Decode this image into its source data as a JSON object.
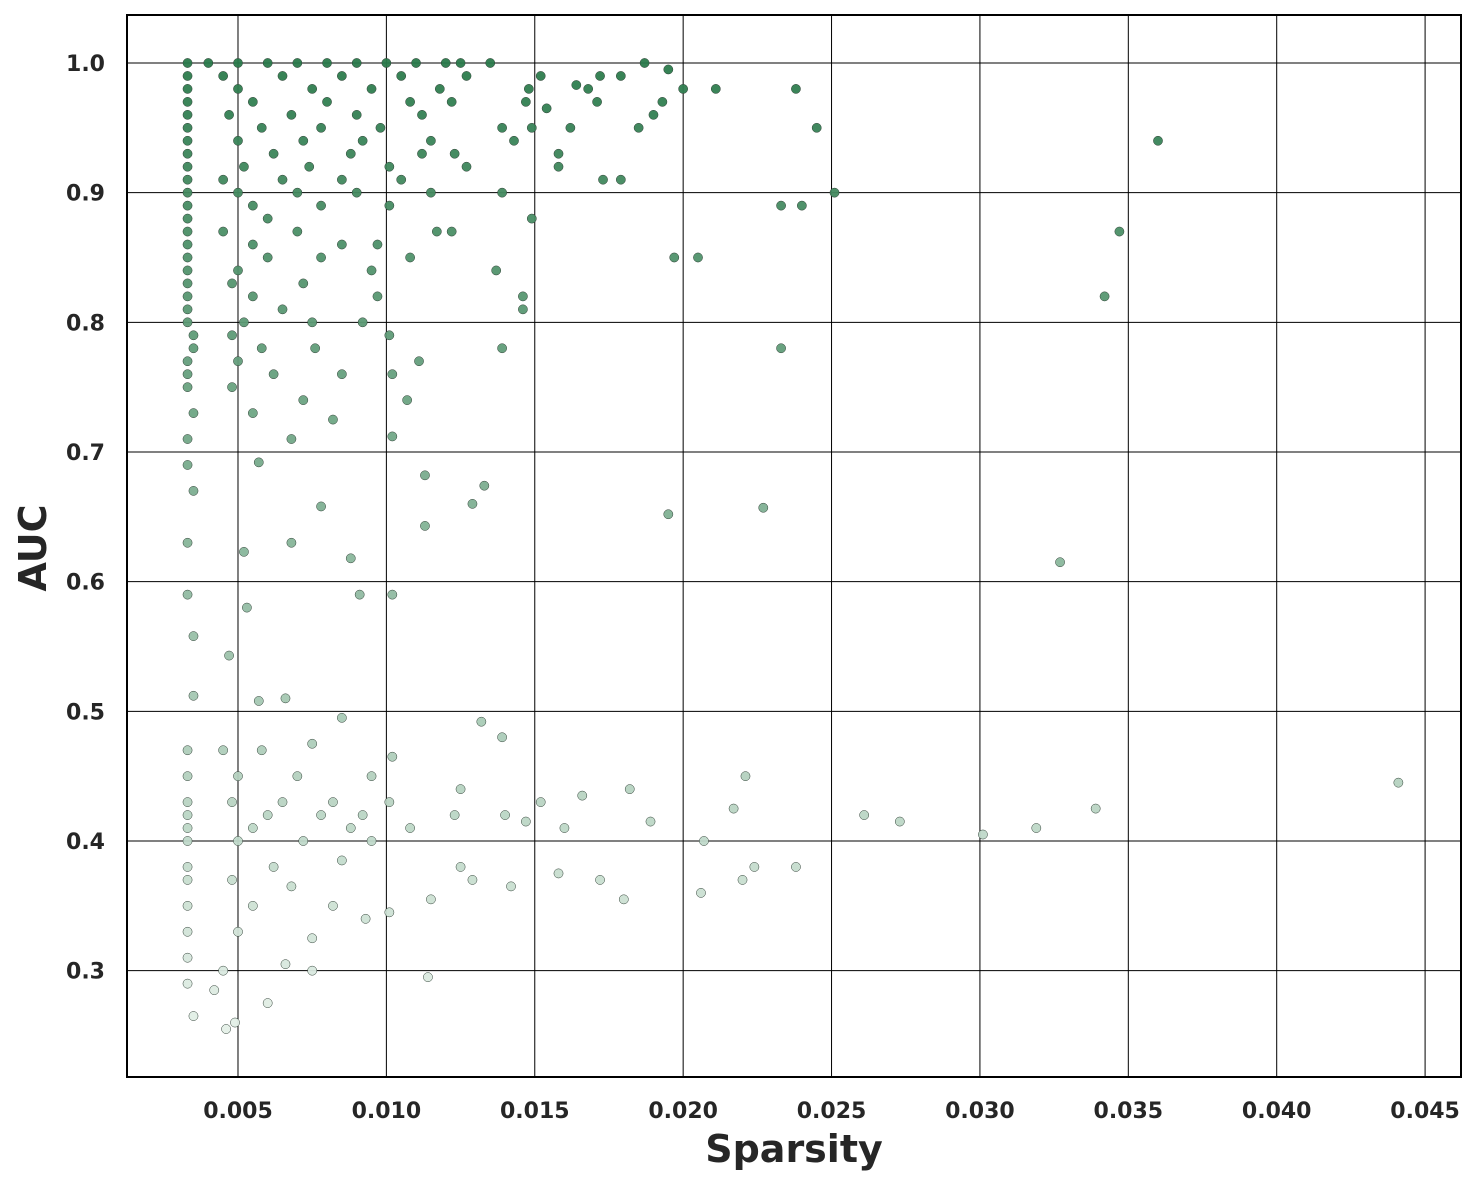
{
  "chart_data": {
    "type": "scatter",
    "x_label": "Sparsity",
    "y_label": "AUC",
    "xlim": [
      0.00126,
      0.04621
    ],
    "ylim": [
      0.218,
      1.037
    ],
    "xticks": [
      0.005,
      {
        "value": 0.01,
        "label": "0.010"
      },
      0.015,
      {
        "value": 0.02,
        "label": "0.020"
      },
      0.025,
      {
        "value": 0.03,
        "label": "0.030"
      },
      0.035,
      {
        "value": 0.04,
        "label": "0.040"
      },
      0.045
    ],
    "yticks": [
      0.3,
      0.4,
      0.5,
      0.6,
      0.7,
      0.8,
      0.9,
      {
        "value": 1,
        "label": "1.0"
      }
    ],
    "grid": true,
    "color_low": "#eef6f0",
    "color_high": "#2a7a4b",
    "edge_color": "#2f3f35",
    "x": [
      0.0033,
      0.004,
      0.005,
      0.006,
      0.007,
      0.008,
      0.009,
      0.01,
      0.011,
      0.012,
      0.0125,
      0.0135,
      0.0187,
      0.0033,
      0.0045,
      0.0065,
      0.0085,
      0.0105,
      0.0127,
      0.0152,
      0.0172,
      0.0195,
      0.0179,
      0.0033,
      0.005,
      0.0075,
      0.0095,
      0.0118,
      0.0148,
      0.0168,
      0.02,
      0.0211,
      0.0238,
      0.0164,
      0.0033,
      0.0055,
      0.008,
      0.0108,
      0.0122,
      0.0147,
      0.0193,
      0.0171,
      0.0033,
      0.0047,
      0.0068,
      0.009,
      0.0112,
      0.0154,
      0.019,
      0.0033,
      0.0058,
      0.0078,
      0.0098,
      0.0139,
      0.0149,
      0.0162,
      0.0185,
      0.0245,
      0.0033,
      0.005,
      0.0072,
      0.0092,
      0.0115,
      0.0143,
      0.036,
      0.0033,
      0.0062,
      0.0088,
      0.0112,
      0.0123,
      0.0158,
      0.0033,
      0.0052,
      0.0074,
      0.0101,
      0.0127,
      0.0158,
      0.0033,
      0.0045,
      0.0065,
      0.0085,
      0.0105,
      0.0173,
      0.0179,
      0.0033,
      0.005,
      0.007,
      0.009,
      0.0115,
      0.0139,
      0.0251,
      0.0033,
      0.0055,
      0.0078,
      0.0101,
      0.0233,
      0.024,
      0.0033,
      0.006,
      0.0149,
      0.0033,
      0.0045,
      0.007,
      0.0117,
      0.0122,
      0.0347,
      0.0033,
      0.0055,
      0.0085,
      0.0097,
      0.0033,
      0.006,
      0.0078,
      0.0108,
      0.0197,
      0.0205,
      0.0033,
      0.005,
      0.0095,
      0.0137,
      0.0033,
      0.0048,
      0.0072,
      0.0033,
      0.0055,
      0.0097,
      0.0146,
      0.0342,
      0.0033,
      0.0065,
      0.0146,
      0.0033,
      0.0052,
      0.0075,
      0.0092,
      0.0035,
      0.0048,
      0.0101,
      0.0035,
      0.0058,
      0.0076,
      0.0139,
      0.0233,
      0.0033,
      0.005,
      0.0111,
      0.0033,
      0.0062,
      0.0085,
      0.0102,
      0.0033,
      0.0048,
      0.0072,
      0.0107,
      0.0035,
      0.0055,
      0.0082,
      0.0033,
      0.0068,
      0.0102,
      0.0033,
      0.0057,
      0.0113,
      0.0133,
      0.0035,
      0.0078,
      0.0129,
      0.0195,
      0.0227,
      0.0113,
      0.0033,
      0.0068,
      0.0052,
      0.0327,
      0.0088,
      0.0033,
      0.0091,
      0.0102,
      0.0053,
      0.0035,
      0.0047,
      0.0035,
      0.0057,
      0.0066,
      0.0033,
      0.0045,
      0.0058,
      0.0075,
      0.0085,
      0.0132,
      0.0139,
      0.0033,
      0.005,
      0.007,
      0.0095,
      0.0102,
      0.0221,
      0.0441,
      0.0033,
      0.0048,
      0.0065,
      0.0082,
      0.0101,
      0.0152,
      0.0166,
      0.0125,
      0.0182,
      0.0033,
      0.006,
      0.0078,
      0.0092,
      0.0123,
      0.014,
      0.0217,
      0.0261,
      0.0339,
      0.0033,
      0.0055,
      0.0088,
      0.0108,
      0.0147,
      0.016,
      0.0189,
      0.0273,
      0.0319,
      0.0033,
      0.005,
      0.0072,
      0.0095,
      0.0207,
      0.0301,
      0.0033,
      0.0062,
      0.0085,
      0.0125,
      0.0224,
      0.0238,
      0.0033,
      0.0048,
      0.0068,
      0.0129,
      0.0172,
      0.022,
      0.0158,
      0.0033,
      0.0055,
      0.0082,
      0.0101,
      0.0115,
      0.0142,
      0.018,
      0.0206,
      0.0033,
      0.005,
      0.0075,
      0.0093,
      0.0033,
      0.0045,
      0.0066,
      0.0075,
      0.0114,
      0.0033,
      0.0042,
      0.006,
      0.0035,
      0.0049,
      0.0046
    ],
    "y": [
      1,
      1,
      1,
      1,
      1,
      1,
      1,
      1,
      1,
      1,
      1,
      1,
      1,
      0.99,
      0.99,
      0.99,
      0.99,
      0.99,
      0.99,
      0.99,
      0.99,
      0.995,
      0.99,
      0.98,
      0.98,
      0.98,
      0.98,
      0.98,
      0.98,
      0.98,
      0.98,
      0.98,
      0.98,
      0.983,
      0.97,
      0.97,
      0.97,
      0.97,
      0.97,
      0.97,
      0.97,
      0.97,
      0.96,
      0.96,
      0.96,
      0.96,
      0.96,
      0.965,
      0.96,
      0.95,
      0.95,
      0.95,
      0.95,
      0.95,
      0.95,
      0.95,
      0.95,
      0.95,
      0.94,
      0.94,
      0.94,
      0.94,
      0.94,
      0.94,
      0.94,
      0.93,
      0.93,
      0.93,
      0.93,
      0.93,
      0.93,
      0.92,
      0.92,
      0.92,
      0.92,
      0.92,
      0.92,
      0.91,
      0.91,
      0.91,
      0.91,
      0.91,
      0.91,
      0.91,
      0.9,
      0.9,
      0.9,
      0.9,
      0.9,
      0.9,
      0.9,
      0.89,
      0.89,
      0.89,
      0.89,
      0.89,
      0.89,
      0.88,
      0.88,
      0.88,
      0.87,
      0.87,
      0.87,
      0.87,
      0.87,
      0.87,
      0.86,
      0.86,
      0.86,
      0.86,
      0.85,
      0.85,
      0.85,
      0.85,
      0.85,
      0.85,
      0.84,
      0.84,
      0.84,
      0.84,
      0.83,
      0.83,
      0.83,
      0.82,
      0.82,
      0.82,
      0.82,
      0.82,
      0.81,
      0.81,
      0.81,
      0.8,
      0.8,
      0.8,
      0.8,
      0.79,
      0.79,
      0.79,
      0.78,
      0.78,
      0.78,
      0.78,
      0.78,
      0.77,
      0.77,
      0.77,
      0.76,
      0.76,
      0.76,
      0.76,
      0.75,
      0.75,
      0.74,
      0.74,
      0.73,
      0.73,
      0.725,
      0.71,
      0.71,
      0.712,
      0.69,
      0.692,
      0.682,
      0.674,
      0.67,
      0.658,
      0.66,
      0.652,
      0.657,
      0.643,
      0.63,
      0.63,
      0.623,
      0.615,
      0.618,
      0.59,
      0.59,
      0.59,
      0.58,
      0.558,
      0.543,
      0.512,
      0.508,
      0.51,
      0.47,
      0.47,
      0.47,
      0.475,
      0.495,
      0.492,
      0.48,
      0.45,
      0.45,
      0.45,
      0.45,
      0.465,
      0.45,
      0.445,
      0.43,
      0.43,
      0.43,
      0.43,
      0.43,
      0.43,
      0.435,
      0.44,
      0.44,
      0.42,
      0.42,
      0.42,
      0.42,
      0.42,
      0.42,
      0.425,
      0.42,
      0.425,
      0.41,
      0.41,
      0.41,
      0.41,
      0.415,
      0.41,
      0.415,
      0.415,
      0.41,
      0.4,
      0.4,
      0.4,
      0.4,
      0.4,
      0.405,
      0.38,
      0.38,
      0.385,
      0.38,
      0.38,
      0.38,
      0.37,
      0.37,
      0.365,
      0.37,
      0.37,
      0.37,
      0.375,
      0.35,
      0.35,
      0.35,
      0.345,
      0.355,
      0.365,
      0.355,
      0.36,
      0.33,
      0.33,
      0.325,
      0.34,
      0.31,
      0.3,
      0.305,
      0.3,
      0.295,
      0.29,
      0.285,
      0.275,
      0.265,
      0.26,
      0.255
    ]
  }
}
